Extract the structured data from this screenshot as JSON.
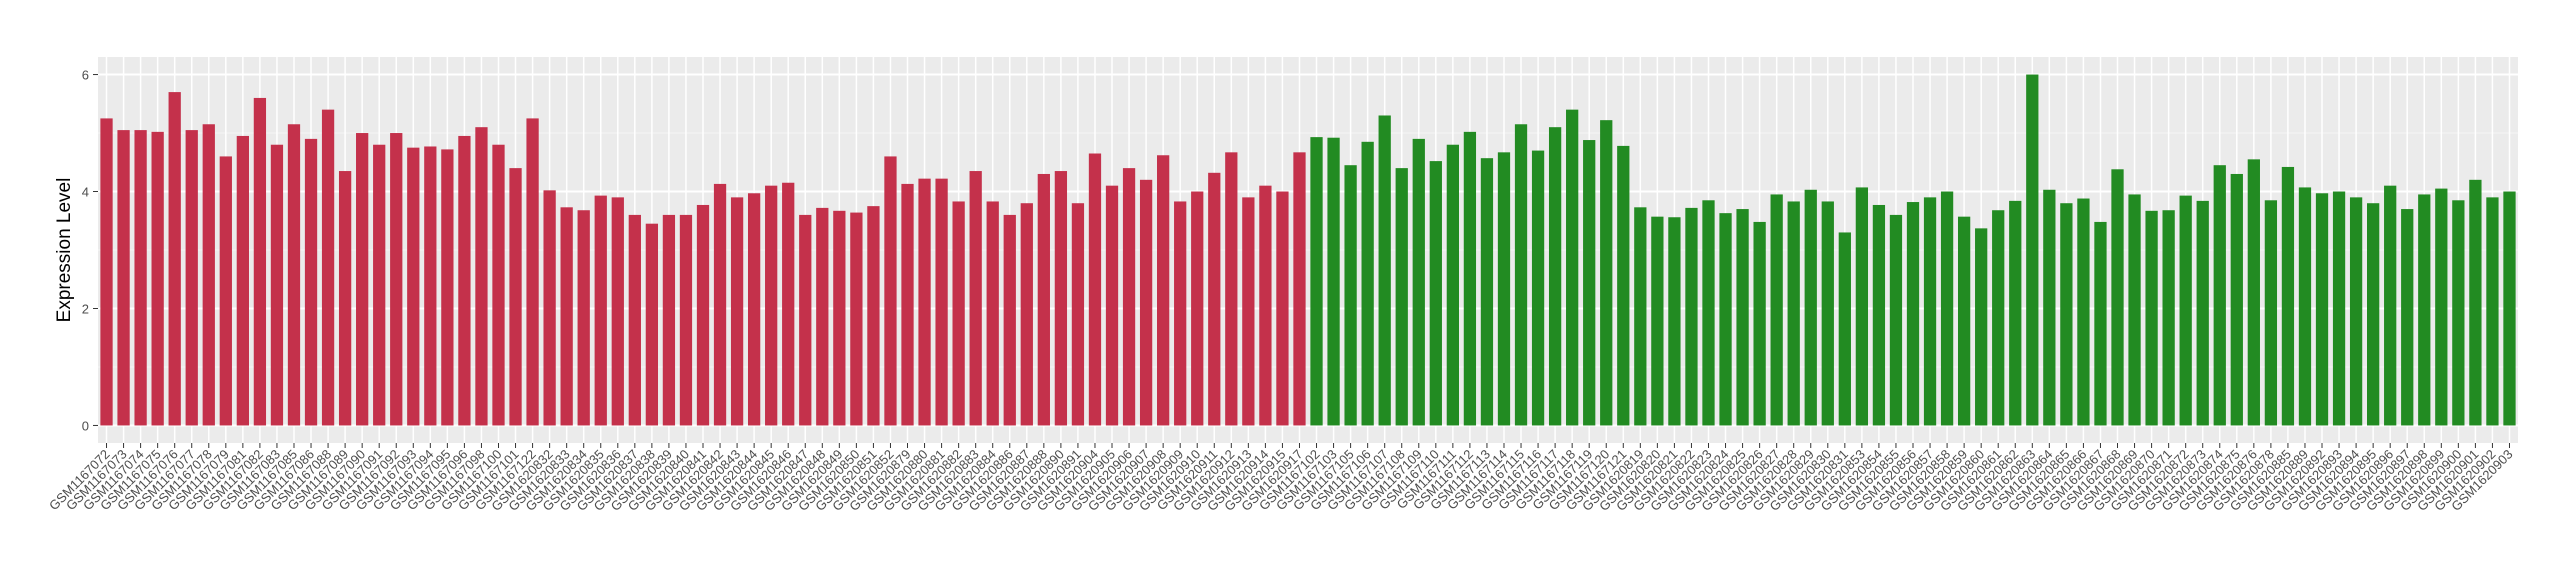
{
  "chart_data": {
    "type": "bar",
    "y_label": "Expression Level",
    "categories": [
      "GSM1167072",
      "GSM1167073",
      "GSM1167074",
      "GSM1167075",
      "GSM1167076",
      "GSM1167077",
      "GSM1167078",
      "GSM1167079",
      "GSM1167081",
      "GSM1167082",
      "GSM1167083",
      "GSM1167085",
      "GSM1167086",
      "GSM1167088",
      "GSM1167089",
      "GSM1167090",
      "GSM1167091",
      "GSM1167092",
      "GSM1167093",
      "GSM1167094",
      "GSM1167095",
      "GSM1167096",
      "GSM1167098",
      "GSM1167100",
      "GSM1167101",
      "GSM1167122",
      "GSM1620832",
      "GSM1620833",
      "GSM1620834",
      "GSM1620835",
      "GSM1620836",
      "GSM1620837",
      "GSM1620838",
      "GSM1620839",
      "GSM1620840",
      "GSM1620841",
      "GSM1620842",
      "GSM1620843",
      "GSM1620844",
      "GSM1620845",
      "GSM1620846",
      "GSM1620847",
      "GSM1620848",
      "GSM1620849",
      "GSM1620850",
      "GSM1620851",
      "GSM1620852",
      "GSM1620879",
      "GSM1620880",
      "GSM1620881",
      "GSM1620882",
      "GSM1620883",
      "GSM1620884",
      "GSM1620886",
      "GSM1620887",
      "GSM1620888",
      "GSM1620890",
      "GSM1620891",
      "GSM1620904",
      "GSM1620905",
      "GSM1620906",
      "GSM1620907",
      "GSM1620908",
      "GSM1620909",
      "GSM1620910",
      "GSM1620911",
      "GSM1620912",
      "GSM1620913",
      "GSM1620914",
      "GSM1620915",
      "GSM1620917",
      "GSM1167102",
      "GSM1167103",
      "GSM1167105",
      "GSM1167106",
      "GSM1167107",
      "GSM1167108",
      "GSM1167109",
      "GSM1167110",
      "GSM1167111",
      "GSM1167112",
      "GSM1167113",
      "GSM1167114",
      "GSM1167115",
      "GSM1167116",
      "GSM1167117",
      "GSM1167118",
      "GSM1167119",
      "GSM1167120",
      "GSM1167121",
      "GSM1620819",
      "GSM1620820",
      "GSM1620821",
      "GSM1620822",
      "GSM1620823",
      "GSM1620824",
      "GSM1620825",
      "GSM1620826",
      "GSM1620827",
      "GSM1620828",
      "GSM1620829",
      "GSM1620830",
      "GSM1620831",
      "GSM1620853",
      "GSM1620854",
      "GSM1620855",
      "GSM1620856",
      "GSM1620857",
      "GSM1620858",
      "GSM1620859",
      "GSM1620860",
      "GSM1620861",
      "GSM1620862",
      "GSM1620863",
      "GSM1620864",
      "GSM1620865",
      "GSM1620866",
      "GSM1620867",
      "GSM1620868",
      "GSM1620869",
      "GSM1620870",
      "GSM1620871",
      "GSM1620872",
      "GSM1620873",
      "GSM1620874",
      "GSM1620875",
      "GSM1620876",
      "GSM1620878",
      "GSM1620885",
      "GSM1620889",
      "GSM1620892",
      "GSM1620893",
      "GSM1620894",
      "GSM1620895",
      "GSM1620896",
      "GSM1620897",
      "GSM1620898",
      "GSM1620899",
      "GSM1620900",
      "GSM1620901",
      "GSM1620902",
      "GSM1620903"
    ],
    "values": [
      5.25,
      5.05,
      5.05,
      5.02,
      5.7,
      5.05,
      5.15,
      4.6,
      4.95,
      5.6,
      4.8,
      5.15,
      4.9,
      5.4,
      4.35,
      5.0,
      4.8,
      5.0,
      4.75,
      4.77,
      4.72,
      4.95,
      5.1,
      4.8,
      4.4,
      5.25,
      4.02,
      3.73,
      3.68,
      3.93,
      3.9,
      3.6,
      3.45,
      3.6,
      3.6,
      3.77,
      4.13,
      3.9,
      3.97,
      4.1,
      4.15,
      3.6,
      3.72,
      3.67,
      3.64,
      3.75,
      4.6,
      4.13,
      4.22,
      4.22,
      3.83,
      4.35,
      3.83,
      3.6,
      3.8,
      4.3,
      4.35,
      3.8,
      4.65,
      4.1,
      4.4,
      4.2,
      4.62,
      3.83,
      4.0,
      4.32,
      4.67,
      3.9,
      4.1,
      4.0,
      4.67,
      4.93,
      4.92,
      4.45,
      4.85,
      5.3,
      4.4,
      4.9,
      4.52,
      4.8,
      5.02,
      4.57,
      4.67,
      5.15,
      4.7,
      5.1,
      5.4,
      4.88,
      5.22,
      4.78,
      3.73,
      3.57,
      3.56,
      3.72,
      3.85,
      3.63,
      3.7,
      3.48,
      3.95,
      3.83,
      4.03,
      3.83,
      3.3,
      4.07,
      3.77,
      3.6,
      3.82,
      3.9,
      4.0,
      3.57,
      3.37,
      3.68,
      3.84,
      6.0,
      4.03,
      3.8,
      3.88,
      3.48,
      4.38,
      3.95,
      3.67,
      3.68,
      3.93,
      3.84,
      4.45,
      4.3,
      4.55,
      3.85,
      4.42,
      4.07,
      3.97,
      4.0,
      3.9,
      3.8,
      4.1,
      3.7,
      3.95,
      4.05,
      3.85,
      4.2,
      3.9,
      4.0
    ],
    "colors": [
      "#c4314b",
      "#c4314b",
      "#c4314b",
      "#c4314b",
      "#c4314b",
      "#c4314b",
      "#c4314b",
      "#c4314b",
      "#c4314b",
      "#c4314b",
      "#c4314b",
      "#c4314b",
      "#c4314b",
      "#c4314b",
      "#c4314b",
      "#c4314b",
      "#c4314b",
      "#c4314b",
      "#c4314b",
      "#c4314b",
      "#c4314b",
      "#c4314b",
      "#c4314b",
      "#c4314b",
      "#c4314b",
      "#c4314b",
      "#c4314b",
      "#c4314b",
      "#c4314b",
      "#c4314b",
      "#c4314b",
      "#c4314b",
      "#c4314b",
      "#c4314b",
      "#c4314b",
      "#c4314b",
      "#c4314b",
      "#c4314b",
      "#c4314b",
      "#c4314b",
      "#c4314b",
      "#c4314b",
      "#c4314b",
      "#c4314b",
      "#c4314b",
      "#c4314b",
      "#c4314b",
      "#c4314b",
      "#c4314b",
      "#c4314b",
      "#c4314b",
      "#c4314b",
      "#c4314b",
      "#c4314b",
      "#c4314b",
      "#c4314b",
      "#c4314b",
      "#c4314b",
      "#c4314b",
      "#c4314b",
      "#c4314b",
      "#c4314b",
      "#c4314b",
      "#c4314b",
      "#c4314b",
      "#c4314b",
      "#c4314b",
      "#c4314b",
      "#c4314b",
      "#c4314b",
      "#c4314b",
      "#228b22",
      "#228b22",
      "#228b22",
      "#228b22",
      "#228b22",
      "#228b22",
      "#228b22",
      "#228b22",
      "#228b22",
      "#228b22",
      "#228b22",
      "#228b22",
      "#228b22",
      "#228b22",
      "#228b22",
      "#228b22",
      "#228b22",
      "#228b22",
      "#228b22",
      "#228b22",
      "#228b22",
      "#228b22",
      "#228b22",
      "#228b22",
      "#228b22",
      "#228b22",
      "#228b22",
      "#228b22",
      "#228b22",
      "#228b22",
      "#228b22",
      "#228b22",
      "#228b22",
      "#228b22",
      "#228b22",
      "#228b22",
      "#228b22",
      "#228b22",
      "#228b22",
      "#228b22",
      "#228b22",
      "#228b22",
      "#228b22",
      "#228b22",
      "#228b22",
      "#228b22",
      "#228b22",
      "#228b22",
      "#228b22",
      "#228b22",
      "#228b22",
      "#228b22",
      "#228b22",
      "#228b22",
      "#228b22",
      "#228b22",
      "#228b22",
      "#228b22",
      "#228b22",
      "#228b22",
      "#228b22",
      "#228b22",
      "#228b22",
      "#228b22",
      "#228b22",
      "#228b22",
      "#228b22",
      "#228b22",
      "#228b22",
      "#228b22",
      "#228b22",
      "#228b22",
      "#228b22",
      "#228b22",
      "#228b22",
      "#228b22",
      "#228b22",
      "#228b22",
      "#228b22",
      "#228b22",
      "#228b22",
      "#228b22",
      "#228b22"
    ],
    "ylim": [
      -0.3,
      6.3
    ],
    "yticks": [
      0,
      2,
      4,
      6
    ],
    "grid": true
  }
}
